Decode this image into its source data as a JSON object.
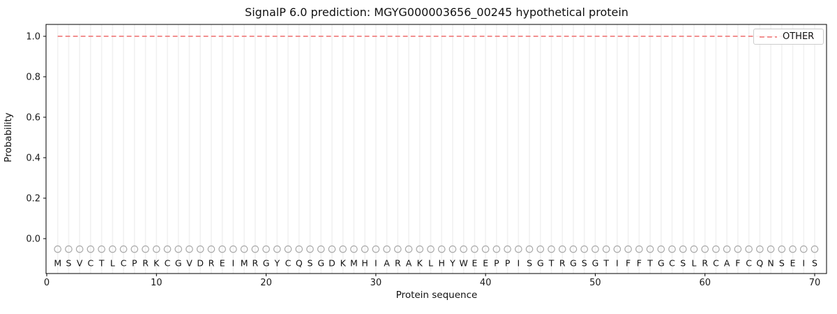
{
  "chart_data": {
    "type": "line",
    "title": "SignalP 6.0 prediction: MGYG000003656_00245 hypothetical protein",
    "xlabel": "Protein sequence",
    "ylabel": "Probability",
    "x_ticks": [
      0,
      10,
      20,
      30,
      40,
      50,
      60,
      70
    ],
    "y_ticks": [
      0.0,
      0.2,
      0.4,
      0.6,
      0.8,
      1.0
    ],
    "y_tick_labels": [
      "0.0",
      "0.2",
      "0.4",
      "0.6",
      "0.8",
      "1.0"
    ],
    "xlim": [
      0,
      71.2
    ],
    "ylim": [
      -0.17,
      1.06
    ],
    "grid": "vertical-line-per-residue",
    "legend": {
      "position": "upper-right",
      "label": "OTHER"
    },
    "series": [
      {
        "name": "OTHER",
        "style": "dashed",
        "color": "#f08080",
        "x_start": 1,
        "x_end": 70,
        "constant_value": 1.0
      }
    ],
    "sequence": "MSVCTLCPRKCGVDREIMRGYCQSGDKMHIARAKLHYWEEPPISGTRGSGTIFFTGCSLRCAFCQNSEIS",
    "sequence_length": 70,
    "sequence_markers": {
      "shape": "open-circle",
      "color": "#a8a8a8",
      "y_value": -0.052
    },
    "colors": {
      "grid": "#f1f1f1",
      "spine": "#000000",
      "tick_text": "#1a1a1a",
      "letter_text": "#111111",
      "legend_border": "#cccccc"
    }
  }
}
